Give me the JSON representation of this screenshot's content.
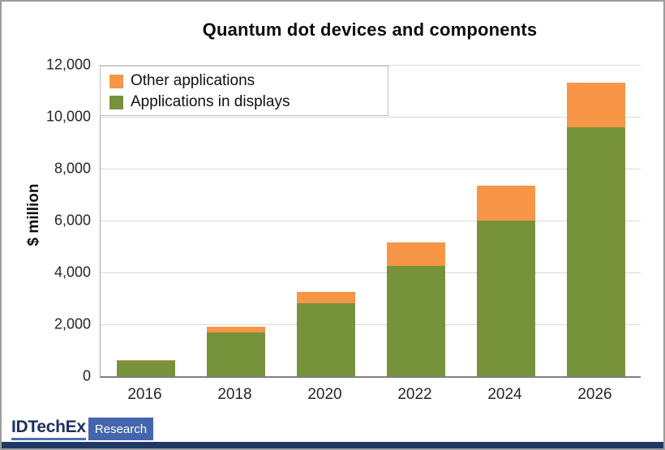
{
  "title_text": "Quantum dot devices and components",
  "colors": {
    "other": "#f79646",
    "displays": "#76933c",
    "gridline": "#d9d9d9",
    "axis_line": "#7f7f7f",
    "logo_navy": "#1f3864",
    "logo_blue": "#4565ae",
    "underline_blue": "#4a6fb5"
  },
  "chart_data": {
    "type": "bar",
    "stacked": true,
    "title": "Quantum dot devices and components",
    "ylabel": "$ million",
    "xlabel": "",
    "categories": [
      "2016",
      "2018",
      "2020",
      "2022",
      "2024",
      "2026"
    ],
    "series": [
      {
        "name": "Applications in displays",
        "color_key": "displays",
        "values": [
          600,
          1700,
          2800,
          4250,
          6000,
          9600
        ]
      },
      {
        "name": "Other applications",
        "color_key": "other",
        "values": [
          30,
          200,
          450,
          900,
          1350,
          1700
        ]
      }
    ],
    "totals": [
      630,
      1900,
      3250,
      5150,
      7350,
      11300
    ],
    "ylim": [
      0,
      12000
    ],
    "ytick_interval": 2000,
    "yticks": [
      "0",
      "2,000",
      "4,000",
      "6,000",
      "8,000",
      "10,000",
      "12,000"
    ],
    "grid": true,
    "legend_position": "top-left"
  },
  "legend": {
    "items": [
      {
        "label": "Other applications",
        "color_key": "other"
      },
      {
        "label": "Applications in displays",
        "color_key": "displays"
      }
    ]
  },
  "footer": {
    "brand": "IDTechEx",
    "brand_sub": "Research"
  }
}
